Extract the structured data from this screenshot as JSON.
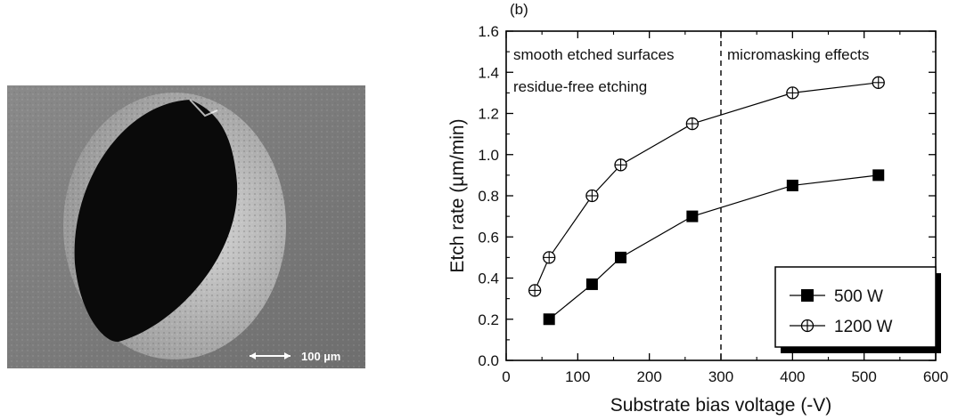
{
  "figure": {
    "panel_letter": "(b)",
    "scale_bar_label": "100 µm"
  },
  "chart_data": {
    "type": "line",
    "xlabel": "Substrate bias voltage (-V)",
    "ylabel": "Etch rate (µm/min)",
    "xlim": [
      0,
      600
    ],
    "ylim": [
      0.0,
      1.6
    ],
    "xticks": [
      0,
      100,
      200,
      300,
      400,
      500,
      600
    ],
    "yticks": [
      0.0,
      0.2,
      0.4,
      0.6,
      0.8,
      1.0,
      1.2,
      1.4,
      1.6
    ],
    "x_tick_labels": [
      "0",
      "100",
      "200",
      "300",
      "400",
      "500",
      "600"
    ],
    "y_tick_labels": [
      "0.0",
      "0.2",
      "0.4",
      "0.6",
      "0.8",
      "1.0",
      "1.2",
      "1.4",
      "1.6"
    ],
    "divider_x": 300,
    "grid": false,
    "legend_position": "bottom-right",
    "annotations": {
      "left_line1": "smooth etched surfaces",
      "left_line2": "residue-free etching",
      "right": "micromasking effects"
    },
    "series": [
      {
        "name": "500 W",
        "marker": "filled-square",
        "x": [
          60,
          120,
          160,
          260,
          400,
          520
        ],
        "y": [
          0.2,
          0.37,
          0.5,
          0.7,
          0.85,
          0.9
        ]
      },
      {
        "name": "1200 W",
        "marker": "circle-plus",
        "x": [
          40,
          60,
          120,
          160,
          260,
          400,
          520
        ],
        "y": [
          0.34,
          0.5,
          0.8,
          0.95,
          1.15,
          1.3,
          1.35
        ]
      }
    ]
  }
}
